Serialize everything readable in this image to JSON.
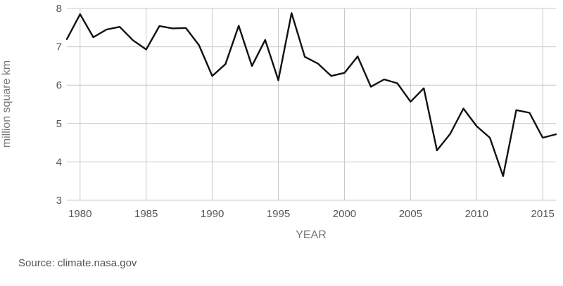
{
  "chart_data": {
    "type": "line",
    "title": "",
    "xlabel": "YEAR",
    "ylabel": "million square km",
    "xlim": [
      1979,
      2016
    ],
    "ylim": [
      3,
      8
    ],
    "xticks": [
      1980,
      1985,
      1990,
      1995,
      2000,
      2005,
      2010,
      2015
    ],
    "yticks": [
      3,
      4,
      5,
      6,
      7,
      8
    ],
    "grid": true,
    "series": [
      {
        "color": "#111111",
        "x": [
          1979,
          1980,
          1981,
          1982,
          1983,
          1984,
          1985,
          1986,
          1987,
          1988,
          1989,
          1990,
          1991,
          1992,
          1993,
          1994,
          1995,
          1996,
          1997,
          1998,
          1999,
          2000,
          2001,
          2002,
          2003,
          2004,
          2005,
          2006,
          2007,
          2008,
          2009,
          2010,
          2011,
          2012,
          2013,
          2014,
          2015,
          2016
        ],
        "y": [
          7.2,
          7.85,
          7.25,
          7.45,
          7.52,
          7.17,
          6.93,
          7.54,
          7.48,
          7.49,
          7.04,
          6.24,
          6.55,
          7.55,
          6.5,
          7.18,
          6.13,
          7.88,
          6.74,
          6.56,
          6.24,
          6.32,
          6.75,
          5.96,
          6.15,
          6.05,
          5.57,
          5.92,
          4.3,
          4.73,
          5.39,
          4.93,
          4.63,
          3.63,
          5.35,
          5.28,
          4.63,
          4.72
        ]
      }
    ]
  },
  "source": "Source: climate.nasa.gov"
}
